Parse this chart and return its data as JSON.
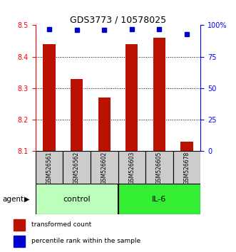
{
  "title": "GDS3773 / 10578025",
  "samples": [
    "GSM526561",
    "GSM526562",
    "GSM526602",
    "GSM526603",
    "GSM526605",
    "GSM526678"
  ],
  "red_values": [
    8.44,
    8.33,
    8.27,
    8.44,
    8.46,
    8.13
  ],
  "blue_values": [
    97,
    96,
    96,
    97,
    97,
    93
  ],
  "ylim_left": [
    8.1,
    8.5
  ],
  "ylim_right": [
    0,
    100
  ],
  "yticks_left": [
    8.1,
    8.2,
    8.3,
    8.4,
    8.5
  ],
  "yticks_right": [
    0,
    25,
    50,
    75,
    100
  ],
  "ytick_labels_right": [
    "0",
    "25",
    "50",
    "75",
    "100%"
  ],
  "groups": [
    {
      "label": "control",
      "indices": [
        0,
        1,
        2
      ],
      "color": "#bbffbb"
    },
    {
      "label": "IL-6",
      "indices": [
        3,
        4,
        5
      ],
      "color": "#33ee33"
    }
  ],
  "bar_color": "#bb1100",
  "dot_color": "#0000cc",
  "bar_bottom": 8.1,
  "legend_red_label": "transformed count",
  "legend_blue_label": "percentile rank within the sample",
  "agent_label": "agent",
  "grid_yticks": [
    8.2,
    8.3,
    8.4
  ],
  "sample_box_color": "#cccccc",
  "bar_width": 0.45
}
